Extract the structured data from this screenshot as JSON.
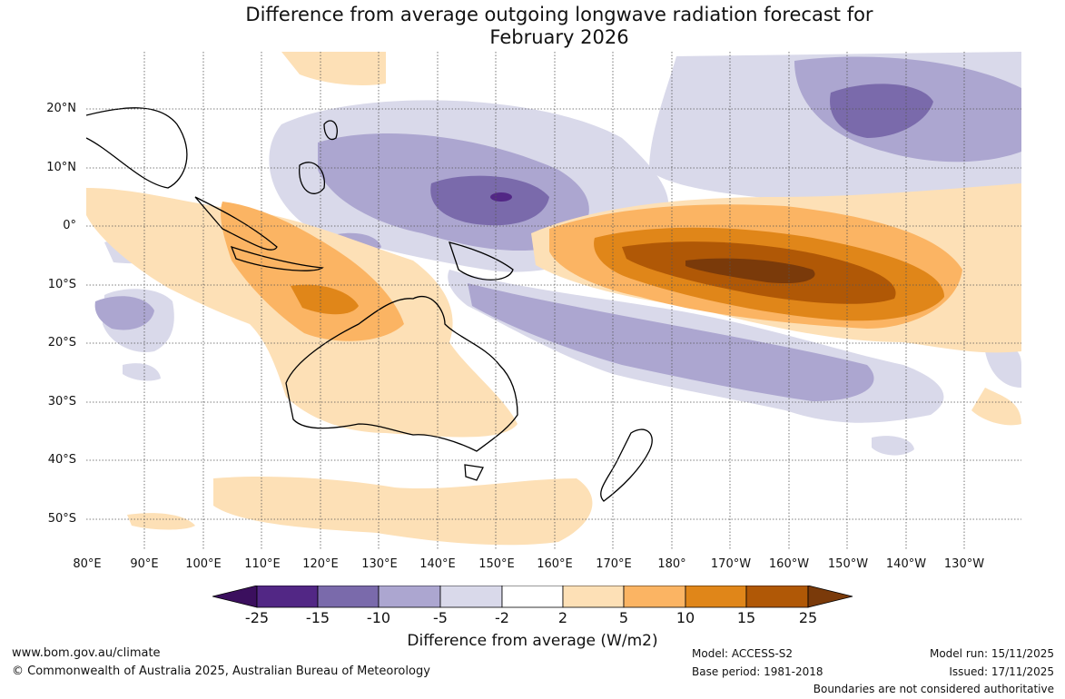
{
  "title": {
    "line1": "Difference from average outgoing longwave radiation forecast for",
    "line2": "February 2026"
  },
  "map": {
    "lat_labels": [
      "20°N",
      "10°N",
      "0°",
      "10°S",
      "20°S",
      "30°S",
      "40°S",
      "50°S"
    ],
    "lon_labels": [
      "80°E",
      "90°E",
      "100°E",
      "110°E",
      "120°E",
      "130°E",
      "140°E",
      "150°E",
      "160°E",
      "170°E",
      "180°",
      "170°W",
      "160°W",
      "150°W",
      "140°W",
      "130°W"
    ]
  },
  "colorbar": {
    "ticks": [
      "-25",
      "-15",
      "-10",
      "-5",
      "-2",
      "2",
      "5",
      "10",
      "15",
      "25"
    ],
    "colors": [
      "#3b0f5e",
      "#522785",
      "#7a6aab",
      "#aca6d0",
      "#d9d9ea",
      "#ffffff",
      "#fde0b6",
      "#fbb463",
      "#e08619",
      "#b05806",
      "#7a3a0a"
    ],
    "label": "Difference from average (W/m2)"
  },
  "footer": {
    "url": "www.bom.gov.au/climate",
    "copyright": "© Commonwealth of Australia 2025, Australian Bureau of Meteorology",
    "model": "Model: ACCESS-S2",
    "base_period": "Base period: 1981-2018",
    "model_run": "Model run: 15/11/2025",
    "issued": "Issued: 17/11/2025",
    "disclaimer": "Boundaries are not considered authoritative"
  }
}
